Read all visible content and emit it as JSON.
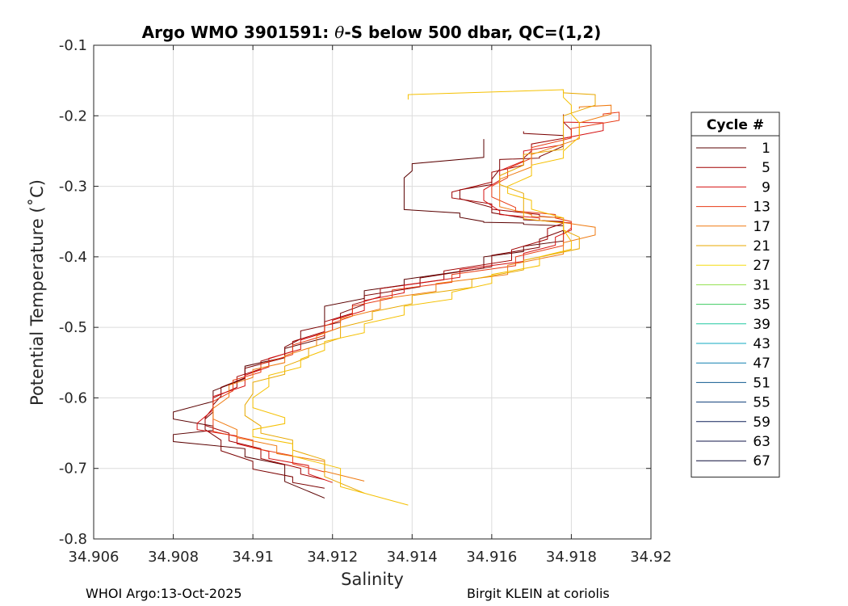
{
  "chart_data": {
    "type": "line",
    "title": "Argo WMO 3901591: θ-S below 500 dbar,  QC=(1,2)",
    "title_parts": {
      "prefix": "Argo WMO 3901591: ",
      "symbol": "θ",
      "suffix": "-S below 500 dbar,  QC=(1,2)"
    },
    "xlabel": "Salinity",
    "ylabel": "Potential Temperature (˚C)",
    "xlim": [
      34.906,
      34.92
    ],
    "ylim": [
      -0.8,
      -0.1
    ],
    "xticks": [
      "34.906",
      "34.908",
      "34.91",
      "34.912",
      "34.914",
      "34.916",
      "34.918",
      "34.92"
    ],
    "yticks": [
      "-0.1",
      "-0.2",
      "-0.3",
      "-0.4",
      "-0.5",
      "-0.6",
      "-0.7",
      "-0.8"
    ],
    "grid": true,
    "legend": {
      "title": "Cycle #",
      "placement": "right, outside plot",
      "entries": [
        {
          "label": "1",
          "color": "#5a0000"
        },
        {
          "label": "5",
          "color": "#a00000"
        },
        {
          "label": "9",
          "color": "#d41010"
        },
        {
          "label": "13",
          "color": "#e83a14"
        },
        {
          "label": "17",
          "color": "#ef7a10"
        },
        {
          "label": "21",
          "color": "#e8a800"
        },
        {
          "label": "27",
          "color": "#f5dc10"
        },
        {
          "label": "31",
          "color": "#8ee04a"
        },
        {
          "label": "35",
          "color": "#3ecc60"
        },
        {
          "label": "39",
          "color": "#20c8a0"
        },
        {
          "label": "43",
          "color": "#10a8c0"
        },
        {
          "label": "47",
          "color": "#1080b0"
        },
        {
          "label": "51",
          "color": "#105a90"
        },
        {
          "label": "55",
          "color": "#0c3c78"
        },
        {
          "label": "59",
          "color": "#10205a"
        },
        {
          "label": "63",
          "color": "#101448"
        },
        {
          "label": "67",
          "color": "#0a0a38"
        }
      ]
    },
    "series": [
      {
        "color": "#5a0000",
        "points": [
          [
            34.9158,
            -0.233
          ],
          [
            34.9158,
            -0.25
          ],
          [
            34.914,
            -0.268
          ],
          [
            34.9138,
            -0.288
          ],
          [
            34.9138,
            -0.328
          ],
          [
            34.9152,
            -0.338
          ],
          [
            34.9158,
            -0.35
          ],
          [
            34.9168,
            -0.352
          ],
          [
            34.9178,
            -0.356
          ],
          [
            34.9178,
            -0.37
          ],
          [
            34.9168,
            -0.385
          ],
          [
            34.9158,
            -0.4
          ],
          [
            34.9138,
            -0.432
          ],
          [
            34.9128,
            -0.448
          ],
          [
            34.9118,
            -0.47
          ],
          [
            34.9118,
            -0.5
          ],
          [
            34.9108,
            -0.53
          ],
          [
            34.9098,
            -0.555
          ],
          [
            34.909,
            -0.59
          ],
          [
            34.908,
            -0.62
          ],
          [
            34.909,
            -0.64
          ],
          [
            34.908,
            -0.652
          ],
          [
            34.9098,
            -0.672
          ],
          [
            34.9108,
            -0.695
          ],
          [
            34.9118,
            -0.742
          ]
        ]
      },
      {
        "color": "#7a0000",
        "points": [
          [
            34.9168,
            -0.222
          ],
          [
            34.9178,
            -0.228
          ],
          [
            34.9172,
            -0.258
          ],
          [
            34.9162,
            -0.262
          ],
          [
            34.916,
            -0.29
          ],
          [
            34.9152,
            -0.305
          ],
          [
            34.916,
            -0.33
          ],
          [
            34.9168,
            -0.345
          ],
          [
            34.9178,
            -0.35
          ],
          [
            34.9172,
            -0.375
          ],
          [
            34.916,
            -0.398
          ],
          [
            34.9142,
            -0.43
          ],
          [
            34.9128,
            -0.455
          ],
          [
            34.9122,
            -0.48
          ],
          [
            34.9112,
            -0.505
          ],
          [
            34.9108,
            -0.528
          ],
          [
            34.9098,
            -0.558
          ],
          [
            34.9092,
            -0.585
          ],
          [
            34.909,
            -0.61
          ],
          [
            34.9088,
            -0.63
          ],
          [
            34.9092,
            -0.66
          ],
          [
            34.91,
            -0.69
          ],
          [
            34.911,
            -0.712
          ],
          [
            34.9118,
            -0.728
          ]
        ]
      },
      {
        "color": "#a00000",
        "points": [
          [
            34.9178,
            -0.198
          ],
          [
            34.918,
            -0.22
          ],
          [
            34.917,
            -0.24
          ],
          [
            34.9168,
            -0.26
          ],
          [
            34.916,
            -0.28
          ],
          [
            34.915,
            -0.308
          ],
          [
            34.916,
            -0.325
          ],
          [
            34.9172,
            -0.34
          ],
          [
            34.9178,
            -0.345
          ],
          [
            34.9174,
            -0.36
          ],
          [
            34.9165,
            -0.39
          ],
          [
            34.9148,
            -0.42
          ],
          [
            34.9132,
            -0.445
          ],
          [
            34.9125,
            -0.468
          ],
          [
            34.9118,
            -0.492
          ],
          [
            34.911,
            -0.52
          ],
          [
            34.9102,
            -0.548
          ],
          [
            34.9096,
            -0.57
          ],
          [
            34.909,
            -0.6
          ],
          [
            34.9088,
            -0.628
          ],
          [
            34.9094,
            -0.65
          ],
          [
            34.9102,
            -0.672
          ],
          [
            34.9112,
            -0.7
          ],
          [
            34.9118,
            -0.716
          ]
        ]
      },
      {
        "color": "#d41010",
        "points": [
          [
            34.9178,
            -0.208
          ],
          [
            34.9188,
            -0.21
          ],
          [
            34.9178,
            -0.232
          ],
          [
            34.9168,
            -0.25
          ],
          [
            34.9162,
            -0.278
          ],
          [
            34.9158,
            -0.305
          ],
          [
            34.9162,
            -0.335
          ],
          [
            34.9172,
            -0.345
          ],
          [
            34.918,
            -0.352
          ],
          [
            34.9176,
            -0.372
          ],
          [
            34.9168,
            -0.395
          ],
          [
            34.9152,
            -0.418
          ],
          [
            34.9138,
            -0.44
          ],
          [
            34.9128,
            -0.462
          ],
          [
            34.912,
            -0.49
          ],
          [
            34.9112,
            -0.518
          ],
          [
            34.9104,
            -0.544
          ],
          [
            34.9098,
            -0.568
          ],
          [
            34.909,
            -0.598
          ],
          [
            34.9086,
            -0.636
          ],
          [
            34.9096,
            -0.654
          ],
          [
            34.9104,
            -0.676
          ],
          [
            34.9114,
            -0.696
          ],
          [
            34.912,
            -0.72
          ]
        ]
      },
      {
        "color": "#e83a14",
        "points": [
          [
            34.9188,
            -0.2
          ],
          [
            34.9192,
            -0.195
          ],
          [
            34.918,
            -0.218
          ],
          [
            34.917,
            -0.245
          ],
          [
            34.9164,
            -0.275
          ],
          [
            34.916,
            -0.3
          ],
          [
            34.9166,
            -0.33
          ],
          [
            34.9176,
            -0.34
          ],
          [
            34.918,
            -0.35
          ],
          [
            34.9178,
            -0.368
          ],
          [
            34.9166,
            -0.4
          ],
          [
            34.915,
            -0.425
          ],
          [
            34.9135,
            -0.447
          ],
          [
            34.9125,
            -0.47
          ],
          [
            34.9118,
            -0.498
          ],
          [
            34.911,
            -0.525
          ],
          [
            34.9102,
            -0.552
          ],
          [
            34.9095,
            -0.575
          ],
          [
            34.909,
            -0.605
          ],
          [
            34.909,
            -0.635
          ],
          [
            34.91,
            -0.66
          ],
          [
            34.911,
            -0.682
          ],
          [
            34.9118,
            -0.705
          ]
        ]
      },
      {
        "color": "#ef7a10",
        "points": [
          [
            34.9182,
            -0.19
          ],
          [
            34.919,
            -0.185
          ],
          [
            34.9182,
            -0.21
          ],
          [
            34.917,
            -0.255
          ],
          [
            34.9162,
            -0.29
          ],
          [
            34.9162,
            -0.318
          ],
          [
            34.917,
            -0.34
          ],
          [
            34.9178,
            -0.345
          ],
          [
            34.9186,
            -0.358
          ],
          [
            34.9178,
            -0.38
          ],
          [
            34.9164,
            -0.412
          ],
          [
            34.9146,
            -0.438
          ],
          [
            34.9132,
            -0.46
          ],
          [
            34.9122,
            -0.488
          ],
          [
            34.9116,
            -0.512
          ],
          [
            34.9108,
            -0.54
          ],
          [
            34.91,
            -0.56
          ],
          [
            34.9094,
            -0.582
          ],
          [
            34.909,
            -0.615
          ],
          [
            34.9096,
            -0.645
          ],
          [
            34.9106,
            -0.668
          ],
          [
            34.9118,
            -0.69
          ],
          [
            34.9128,
            -0.718
          ]
        ]
      },
      {
        "color": "#e8a800",
        "points": [
          [
            34.9178,
            -0.165
          ],
          [
            34.9186,
            -0.17
          ],
          [
            34.9178,
            -0.2
          ],
          [
            34.9178,
            -0.24
          ],
          [
            34.9168,
            -0.255
          ],
          [
            34.9162,
            -0.285
          ],
          [
            34.9168,
            -0.31
          ],
          [
            34.9168,
            -0.34
          ],
          [
            34.9178,
            -0.352
          ],
          [
            34.9182,
            -0.372
          ],
          [
            34.9168,
            -0.405
          ],
          [
            34.9155,
            -0.432
          ],
          [
            34.914,
            -0.455
          ],
          [
            34.913,
            -0.478
          ],
          [
            34.9122,
            -0.5
          ],
          [
            34.9114,
            -0.53
          ],
          [
            34.9108,
            -0.555
          ],
          [
            34.91,
            -0.578
          ],
          [
            34.9098,
            -0.61
          ],
          [
            34.9102,
            -0.64
          ],
          [
            34.911,
            -0.66
          ],
          [
            34.9118,
            -0.688
          ],
          [
            34.9128,
            -0.735
          ]
        ]
      },
      {
        "color": "#f5c000",
        "points": [
          [
            34.9139,
            -0.177
          ],
          [
            34.9178,
            -0.163
          ],
          [
            34.918,
            -0.185
          ],
          [
            34.9182,
            -0.21
          ],
          [
            34.9178,
            -0.25
          ],
          [
            34.917,
            -0.27
          ],
          [
            34.9164,
            -0.3
          ],
          [
            34.917,
            -0.32
          ],
          [
            34.9178,
            -0.345
          ],
          [
            34.918,
            -0.378
          ],
          [
            34.9172,
            -0.4
          ],
          [
            34.916,
            -0.425
          ],
          [
            34.915,
            -0.45
          ],
          [
            34.9138,
            -0.47
          ],
          [
            34.9128,
            -0.495
          ],
          [
            34.9118,
            -0.52
          ],
          [
            34.9112,
            -0.545
          ],
          [
            34.9104,
            -0.568
          ],
          [
            34.91,
            -0.6
          ],
          [
            34.9108,
            -0.628
          ],
          [
            34.91,
            -0.645
          ],
          [
            34.911,
            -0.665
          ],
          [
            34.9122,
            -0.7
          ],
          [
            34.9139,
            -0.752
          ]
        ]
      }
    ]
  },
  "footer": {
    "left": "WHOI Argo:13-Oct-2025",
    "right": "Birgit KLEIN at coriolis"
  }
}
